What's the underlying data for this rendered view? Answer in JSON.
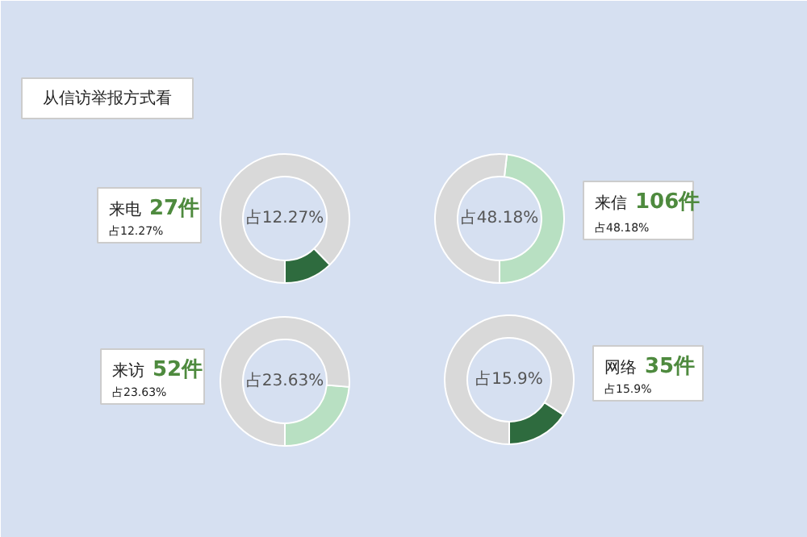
{
  "chart_data": [
    {
      "type": "other",
      "title": "从信访举报方式看"
    },
    {
      "type": "donut",
      "categories": [
        null,
        null
      ],
      "values": [
        12.27,
        87.73
      ],
      "colors": [
        "#2e6b3e",
        "#d9d9d9"
      ],
      "annotations": [
        "占12.27%",
        "来电",
        "27件",
        "占12.27%"
      ]
    },
    {
      "type": "donut",
      "categories": [
        null,
        null
      ],
      "values": [
        48.18,
        51.82
      ],
      "colors": [
        "#b8e0c2",
        "#d9d9d9"
      ],
      "annotations": [
        "占48.18%",
        "来信",
        "106件",
        "占48.18%"
      ]
    },
    {
      "type": "donut",
      "categories": [
        null,
        null
      ],
      "values": [
        23.63,
        76.37
      ],
      "colors": [
        "#b8e0c2",
        "#d9d9d9"
      ],
      "annotations": [
        "占23.63%",
        "来访",
        "52件",
        "占23.63%"
      ]
    },
    {
      "type": "donut",
      "categories": [
        null,
        null
      ],
      "values": [
        15.9,
        84.1
      ],
      "colors": [
        "#2e6b3e",
        "#d9d9d9"
      ],
      "annotations": [
        "占15.9%",
        "网络",
        "35件",
        "占15.9%"
      ]
    }
  ]
}
